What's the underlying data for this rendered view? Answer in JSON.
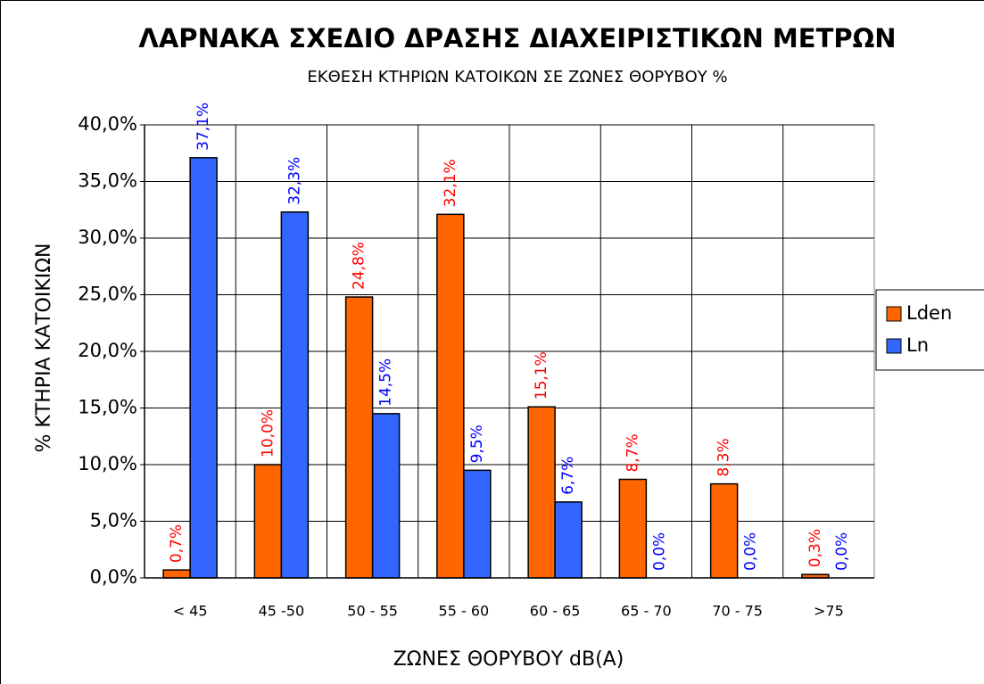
{
  "chart_data": {
    "type": "bar",
    "title": "ΛΑΡΝΑΚΑ ΣΧΕΔΙΟ ΔΡΑΣΗΣ ΔΙΑΧΕΙΡΙΣΤΙΚΩΝ ΜΕΤΡΩΝ",
    "subtitle": "ΕΚΘΕΣΗ ΚΤΗΡΙΩΝ ΚΑΤΟΙΚΩΝ ΣΕ  ΖΩΝΕΣ ΘΟΡΥΒΟΥ %",
    "x_label": "ΖΩΝΕΣ ΘΟΡΥΒΟΥ  dB(A)",
    "y_label": "% ΚΤΗΡΙΑ ΚΑΤΟΙΚΙΩΝ",
    "categories": [
      "< 45",
      "45 -50",
      "50 - 55",
      "55 - 60",
      "60 - 65",
      "65 - 70",
      "70 - 75",
      ">75"
    ],
    "series": [
      {
        "name": "Lden",
        "color": "#ff6600",
        "label_color": "#ff0000",
        "values": [
          0.7,
          10.0,
          24.8,
          32.1,
          15.1,
          8.7,
          8.3,
          0.3
        ],
        "value_labels": [
          "0,7%",
          "10,0%",
          "24,8%",
          "32,1%",
          "15,1%",
          "8,7%",
          "8,3%",
          "0,3%"
        ]
      },
      {
        "name": "Ln",
        "color": "#3366ff",
        "label_color": "#0000ff",
        "values": [
          37.1,
          32.3,
          14.5,
          9.5,
          6.7,
          0.0,
          0.0,
          0.0
        ],
        "value_labels": [
          "37,1%",
          "32,3%",
          "14,5%",
          "9,5%",
          "6,7%",
          "0,0%",
          "0,0%",
          "0,0%"
        ]
      }
    ],
    "ylim": [
      0,
      40
    ],
    "yticks": [
      {
        "value": 0,
        "label": "0,0%"
      },
      {
        "value": 5,
        "label": "5,0%"
      },
      {
        "value": 10,
        "label": "10,0%"
      },
      {
        "value": 15,
        "label": "15,0%"
      },
      {
        "value": 20,
        "label": "20,0%"
      },
      {
        "value": 25,
        "label": "25,0%"
      },
      {
        "value": 30,
        "label": "30,0%"
      },
      {
        "value": 35,
        "label": "35,0%"
      },
      {
        "value": 40,
        "label": "40,0%"
      }
    ],
    "grid": true,
    "legend": "right"
  }
}
